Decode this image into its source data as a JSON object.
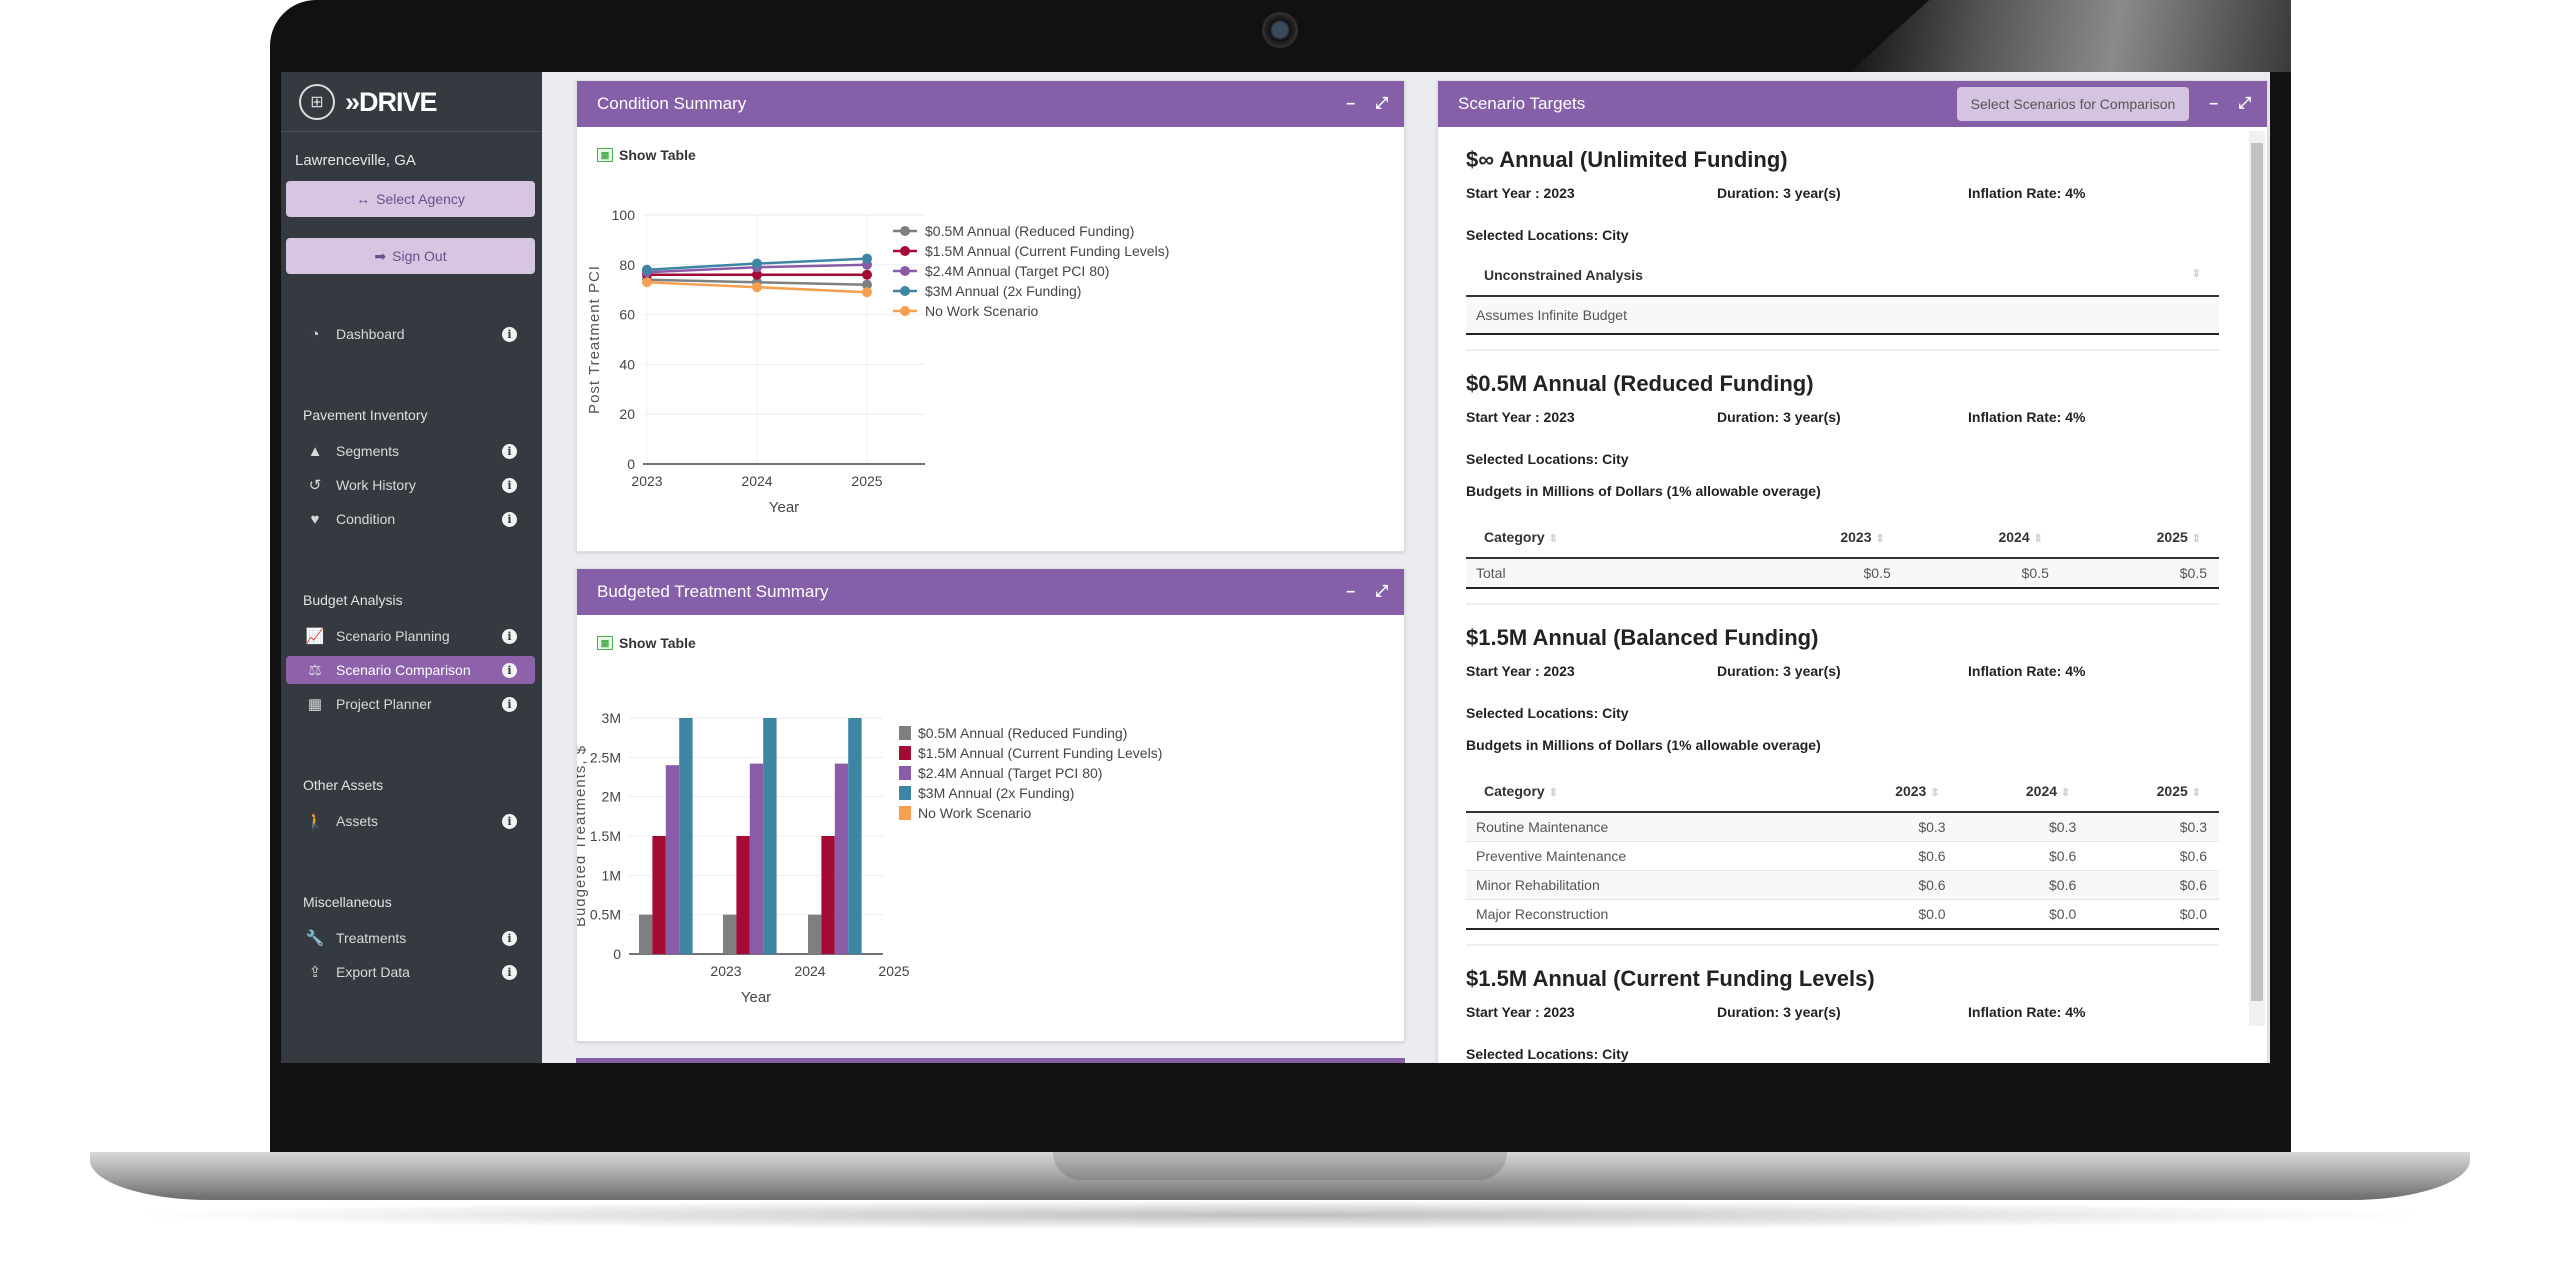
{
  "app": {
    "logo_text": "»DRIVE",
    "agency": "Lawrenceville, GA",
    "select_agency": "Select Agency",
    "sign_out": "Sign Out"
  },
  "sidebar": {
    "dashboard": {
      "label": "Dashboard",
      "icon": "tachometer-icon"
    },
    "sections": [
      {
        "title": "Pavement Inventory",
        "items": [
          {
            "label": "Segments",
            "icon": "road-icon"
          },
          {
            "label": "Work History",
            "icon": "history-icon"
          },
          {
            "label": "Condition",
            "icon": "heartbeat-icon"
          }
        ]
      },
      {
        "title": "Budget Analysis",
        "items": [
          {
            "label": "Scenario Planning",
            "icon": "chart-line-icon"
          },
          {
            "label": "Scenario Comparison",
            "icon": "balance-scale-icon",
            "active": true
          },
          {
            "label": "Project Planner",
            "icon": "calendar-icon"
          }
        ]
      },
      {
        "title": "Other Assets",
        "items": [
          {
            "label": "Assets",
            "icon": "walking-icon"
          }
        ]
      },
      {
        "title": "Miscellaneous",
        "items": [
          {
            "label": "Treatments",
            "icon": "wrench-icon"
          },
          {
            "label": "Export Data",
            "icon": "upload-icon"
          }
        ]
      }
    ]
  },
  "colors": {
    "accent": "#8560a8",
    "sidebar": "#343a40",
    "active": "#8d62ab"
  },
  "condition_panel": {
    "title": "Condition Summary",
    "show_table": "Show Table"
  },
  "budget_panel": {
    "title": "Budgeted Treatment Summary",
    "show_table": "Show Table"
  },
  "chart_data": [
    {
      "type": "line",
      "xlabel": "Year",
      "ylabel": "Post Treatment PCI",
      "ylim": [
        0,
        100
      ],
      "yticks": [
        "0",
        "20",
        "40",
        "60",
        "80",
        "100"
      ],
      "categories": [
        "2023",
        "2024",
        "2025"
      ],
      "grid": true,
      "legend": "right",
      "series": [
        {
          "name": "$0.5M Annual (Reduced Funding)",
          "color": "#7f7f7f",
          "values": [
            74,
            73,
            72
          ]
        },
        {
          "name": "$1.5M Annual (Current Funding Levels)",
          "color": "#a50a35",
          "values": [
            76,
            76,
            76
          ]
        },
        {
          "name": "$2.4M Annual (Target PCI 80)",
          "color": "#8a5ca8",
          "values": [
            77,
            79,
            80
          ]
        },
        {
          "name": "$3M Annual (2x Funding)",
          "color": "#3d85a3",
          "values": [
            78,
            80.5,
            82.5
          ]
        },
        {
          "name": "No Work Scenario",
          "color": "#f4a050",
          "values": [
            73,
            71,
            69
          ]
        }
      ]
    },
    {
      "type": "bar",
      "xlabel": "Year",
      "ylabel": "Budgeted Treatments, $",
      "ylim": [
        0,
        3000000
      ],
      "yticks": [
        "0",
        "0.5M",
        "1M",
        "1.5M",
        "2M",
        "2.5M",
        "3M"
      ],
      "categories": [
        "2023",
        "2024",
        "2025"
      ],
      "grid": true,
      "legend": "right",
      "series": [
        {
          "name": "$0.5M Annual (Reduced Funding)",
          "color": "#7f7f7f",
          "values": [
            500000,
            500000,
            500000
          ]
        },
        {
          "name": "$1.5M Annual (Current Funding Levels)",
          "color": "#a50a35",
          "values": [
            1500000,
            1500000,
            1500000
          ]
        },
        {
          "name": "$2.4M Annual (Target PCI 80)",
          "color": "#8a5ca8",
          "values": [
            2400000,
            2420000,
            2420000
          ]
        },
        {
          "name": "$3M Annual (2x Funding)",
          "color": "#3d85a3",
          "values": [
            3000000,
            3000000,
            3000000
          ]
        },
        {
          "name": "No Work Scenario",
          "color": "#f4a050",
          "values": [
            0,
            0,
            0
          ]
        }
      ]
    }
  ],
  "targets_panel": {
    "title": "Scenario Targets",
    "compare_button": "Select Scenarios for Comparison",
    "scenarios": [
      {
        "title": "$∞ Annual (Unlimited Funding)",
        "start": "Start Year : 2023",
        "duration": "Duration: 3 year(s)",
        "inflation": "Inflation Rate: 4%",
        "locations": "Selected Locations: City",
        "table_header": "Unconstrained Analysis",
        "table_row": "Assumes Infinite Budget"
      },
      {
        "title": "$0.5M Annual (Reduced Funding)",
        "start": "Start Year : 2023",
        "duration": "Duration: 3 year(s)",
        "inflation": "Inflation Rate: 4%",
        "locations": "Selected Locations: City",
        "budgets": "Budgets in Millions of Dollars (1% allowable overage)",
        "columns": [
          "Category",
          "2023",
          "2024",
          "2025"
        ],
        "rows": [
          [
            "Total",
            "$0.5",
            "$0.5",
            "$0.5"
          ]
        ]
      },
      {
        "title": "$1.5M Annual (Balanced Funding)",
        "start": "Start Year : 2023",
        "duration": "Duration: 3 year(s)",
        "inflation": "Inflation Rate: 4%",
        "locations": "Selected Locations: City",
        "budgets": "Budgets in Millions of Dollars (1% allowable overage)",
        "columns": [
          "Category",
          "2023",
          "2024",
          "2025"
        ],
        "rows": [
          [
            "Routine Maintenance",
            "$0.3",
            "$0.3",
            "$0.3"
          ],
          [
            "Preventive Maintenance",
            "$0.6",
            "$0.6",
            "$0.6"
          ],
          [
            "Minor Rehabilitation",
            "$0.6",
            "$0.6",
            "$0.6"
          ],
          [
            "Major Reconstruction",
            "$0.0",
            "$0.0",
            "$0.0"
          ]
        ]
      },
      {
        "title": "$1.5M Annual (Current Funding Levels)",
        "start": "Start Year : 2023",
        "duration": "Duration: 3 year(s)",
        "inflation": "Inflation Rate: 4%",
        "locations": "Selected Locations: City"
      }
    ]
  }
}
